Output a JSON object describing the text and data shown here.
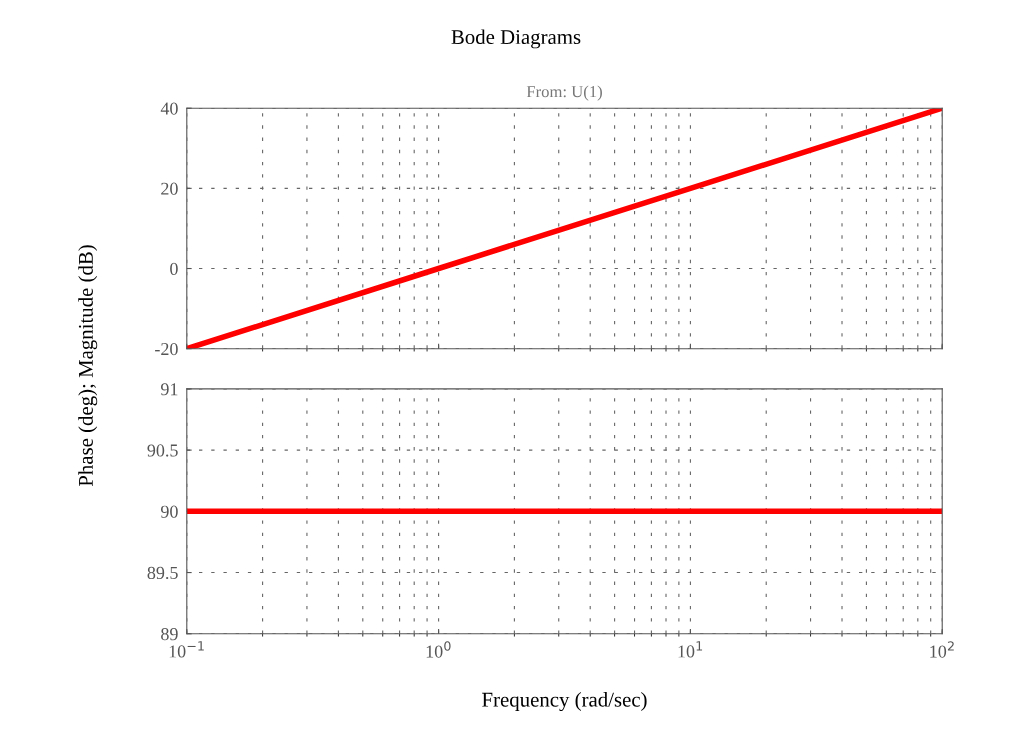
{
  "chart_data": [
    {
      "type": "line",
      "title": "Bode Diagrams",
      "subtitle": "From: U(1)",
      "ylabel": "Phase (deg); Magnitude (dB)",
      "log": "x",
      "grid": true,
      "tick_labels": "y",
      "x": [
        0.1,
        1,
        10,
        100
      ],
      "xlim": [
        0.1,
        100
      ],
      "series": [
        {
          "color": "#ff0000",
          "values": [
            -20,
            0,
            20,
            40
          ]
        }
      ],
      "ylim": [
        -20,
        40
      ],
      "yticks": [
        -20,
        0,
        20,
        40
      ]
    },
    {
      "type": "line",
      "xlabel": "Frequency (rad/sec)",
      "log": "x",
      "grid": true,
      "x": [
        0.1,
        100
      ],
      "xlim": [
        0.1,
        100
      ],
      "xticks": [
        {
          "value": 0.1,
          "label": "10$^{−1}$"
        },
        {
          "value": 1,
          "label": "10$^{0}$"
        },
        {
          "value": 10,
          "label": "10$^{1}$"
        },
        {
          "value": 100,
          "label": "10$^{2}$"
        }
      ],
      "series": [
        {
          "color": "#ff0000",
          "values": [
            90,
            90
          ]
        }
      ],
      "ylim": [
        89,
        91
      ],
      "yticks": [
        89,
        89.5,
        90,
        90.5,
        91
      ]
    }
  ]
}
